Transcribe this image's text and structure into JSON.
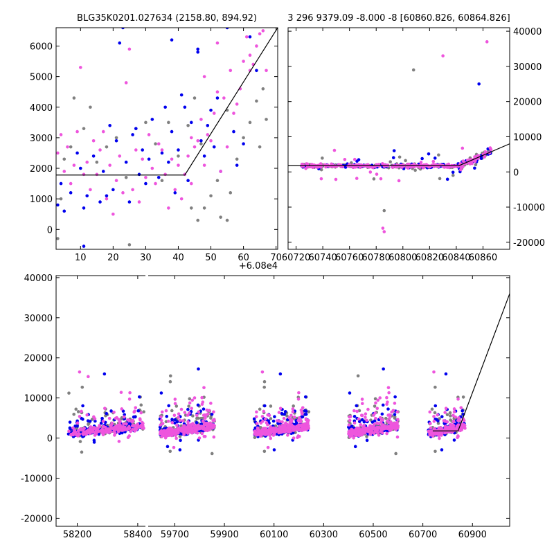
{
  "colors": {
    "blue": "#0000ee",
    "pink": "#ee55dd",
    "gray": "#808080",
    "model": "#000000"
  },
  "chart_data": [
    {
      "id": "zoom-left",
      "type": "scatter",
      "title": "BLG35K0201.027634 (2158.80, 894.92)",
      "offset_label": "+6.08e4",
      "xlim": [
        2.5,
        70.5
      ],
      "ylim": [
        -650,
        6600
      ],
      "xticks": [
        10,
        20,
        30,
        40,
        50,
        60,
        70
      ],
      "yticks": [
        0,
        1000,
        2000,
        3000,
        4000,
        5000,
        6000
      ],
      "model_line": [
        [
          2.5,
          1780
        ],
        [
          42,
          1780
        ],
        [
          70.5,
          6600
        ]
      ],
      "series": [
        {
          "color_key": "gray",
          "points": [
            [
              3,
              -300
            ],
            [
              4,
              1000
            ],
            [
              5,
              2300
            ],
            [
              7,
              2700
            ],
            [
              8,
              4300
            ],
            [
              11,
              3300
            ],
            [
              13,
              4000
            ],
            [
              15,
              2200
            ],
            [
              18,
              2700
            ],
            [
              21,
              3000
            ],
            [
              24,
              1700
            ],
            [
              27,
              3300
            ],
            [
              30,
              3500
            ],
            [
              33,
              2800
            ],
            [
              37,
              3500
            ],
            [
              40,
              2400
            ],
            [
              44,
              700
            ],
            [
              46,
              300
            ],
            [
              47,
              2800
            ],
            [
              48,
              700
            ],
            [
              50,
              1100
            ],
            [
              52,
              1600
            ],
            [
              53,
              400
            ],
            [
              55,
              3900
            ],
            [
              56,
              1200
            ],
            [
              58,
              2300
            ],
            [
              60,
              3000
            ],
            [
              62,
              3500
            ],
            [
              64,
              4200
            ],
            [
              65,
              2700
            ],
            [
              66,
              4600
            ],
            [
              67,
              3600
            ],
            [
              43,
              3400
            ],
            [
              45,
              4300
            ],
            [
              25,
              -500
            ],
            [
              35,
              1600
            ],
            [
              55,
              300
            ]
          ]
        },
        {
          "color_key": "blue",
          "points": [
            [
              3,
              800
            ],
            [
              4,
              1500
            ],
            [
              5,
              600
            ],
            [
              7,
              1200
            ],
            [
              9,
              2500
            ],
            [
              10,
              2000
            ],
            [
              11,
              700
            ],
            [
              12,
              1100
            ],
            [
              14,
              2400
            ],
            [
              16,
              900
            ],
            [
              17,
              1900
            ],
            [
              18,
              1100
            ],
            [
              19,
              3400
            ],
            [
              20,
              1300
            ],
            [
              21,
              2900
            ],
            [
              22,
              6100
            ],
            [
              23,
              6600
            ],
            [
              24,
              2200
            ],
            [
              25,
              900
            ],
            [
              26,
              3100
            ],
            [
              27,
              3300
            ],
            [
              28,
              1800
            ],
            [
              29,
              2600
            ],
            [
              30,
              1500
            ],
            [
              31,
              2300
            ],
            [
              32,
              3600
            ],
            [
              34,
              1700
            ],
            [
              35,
              2500
            ],
            [
              36,
              4000
            ],
            [
              37,
              2200
            ],
            [
              38,
              3200
            ],
            [
              39,
              1200
            ],
            [
              40,
              2600
            ],
            [
              41,
              4400
            ],
            [
              42,
              4000
            ],
            [
              43,
              1600
            ],
            [
              44,
              3500
            ],
            [
              46,
              5900
            ],
            [
              47,
              2900
            ],
            [
              48,
              2400
            ],
            [
              49,
              3400
            ],
            [
              50,
              3900
            ],
            [
              51,
              2700
            ],
            [
              52,
              4300
            ],
            [
              53,
              1900
            ],
            [
              55,
              6600
            ],
            [
              57,
              3200
            ],
            [
              58,
              2100
            ],
            [
              60,
              2800
            ],
            [
              62,
              6300
            ],
            [
              64,
              5200
            ],
            [
              11,
              -550
            ],
            [
              38,
              6200
            ],
            [
              46,
              5800
            ]
          ]
        },
        {
          "color_key": "pink",
          "points": [
            [
              3,
              2500
            ],
            [
              4,
              3100
            ],
            [
              5,
              1900
            ],
            [
              6,
              2700
            ],
            [
              7,
              1500
            ],
            [
              8,
              2100
            ],
            [
              9,
              3200
            ],
            [
              10,
              5300
            ],
            [
              11,
              1800
            ],
            [
              12,
              2200
            ],
            [
              13,
              1300
            ],
            [
              14,
              2900
            ],
            [
              15,
              1800
            ],
            [
              16,
              2600
            ],
            [
              17,
              3200
            ],
            [
              18,
              1000
            ],
            [
              19,
              2100
            ],
            [
              20,
              500
            ],
            [
              21,
              1600
            ],
            [
              22,
              2400
            ],
            [
              23,
              1200
            ],
            [
              24,
              4800
            ],
            [
              25,
              5900
            ],
            [
              26,
              1300
            ],
            [
              27,
              2600
            ],
            [
              28,
              900
            ],
            [
              29,
              2300
            ],
            [
              30,
              1700
            ],
            [
              31,
              3100
            ],
            [
              32,
              2000
            ],
            [
              33,
              1500
            ],
            [
              34,
              2800
            ],
            [
              35,
              2600
            ],
            [
              36,
              1800
            ],
            [
              37,
              700
            ],
            [
              38,
              2300
            ],
            [
              39,
              1300
            ],
            [
              40,
              2100
            ],
            [
              41,
              1000
            ],
            [
              42,
              1800
            ],
            [
              43,
              2400
            ],
            [
              44,
              1500
            ],
            [
              45,
              2700
            ],
            [
              46,
              2900
            ],
            [
              47,
              3600
            ],
            [
              48,
              2100
            ],
            [
              49,
              3100
            ],
            [
              50,
              2900
            ],
            [
              51,
              3800
            ],
            [
              52,
              4500
            ],
            [
              53,
              1900
            ],
            [
              54,
              4300
            ],
            [
              55,
              2700
            ],
            [
              56,
              5200
            ],
            [
              57,
              3800
            ],
            [
              58,
              4100
            ],
            [
              59,
              4600
            ],
            [
              60,
              5500
            ],
            [
              61,
              6300
            ],
            [
              62,
              5200
            ],
            [
              63,
              5400
            ],
            [
              64,
              6000
            ],
            [
              65,
              6400
            ],
            [
              66,
              6500
            ],
            [
              67,
              5200
            ],
            [
              48,
              5000
            ],
            [
              52,
              6100
            ],
            [
              62,
              5700
            ],
            [
              44,
              3000
            ]
          ]
        }
      ]
    },
    {
      "id": "zoom-right",
      "type": "scatter",
      "title": "3 296 9379.09 -8.000 -8 [60860.826, 60864.826]",
      "xlim": [
        60714,
        60880
      ],
      "ylim": [
        -22000,
        41000
      ],
      "xticks": [
        60720,
        60740,
        60760,
        60780,
        60800,
        60820,
        60840,
        60860
      ],
      "yticks": [
        -20000,
        -10000,
        0,
        10000,
        20000,
        30000,
        40000
      ],
      "model_line": [
        [
          60714,
          1780
        ],
        [
          60842,
          1780
        ],
        [
          60880,
          8000
        ]
      ],
      "series": []
    },
    {
      "id": "full-lightcurve",
      "type": "scatter",
      "title": "",
      "ylim": [
        -22000,
        40500
      ],
      "yticks": [
        -20000,
        -10000,
        0,
        10000,
        20000,
        30000,
        40000
      ],
      "segments": [
        {
          "xlim": [
            58130,
            58430
          ],
          "xticks": [
            58200,
            58400
          ]
        },
        {
          "xlim": [
            59590,
            61050
          ],
          "xticks": [
            59700,
            59900,
            60100,
            60300,
            60500,
            60700,
            60900
          ]
        }
      ],
      "model_line": [
        [
          60740,
          1780
        ],
        [
          60842,
          1780
        ],
        [
          61050,
          36000
        ]
      ],
      "series": []
    }
  ]
}
